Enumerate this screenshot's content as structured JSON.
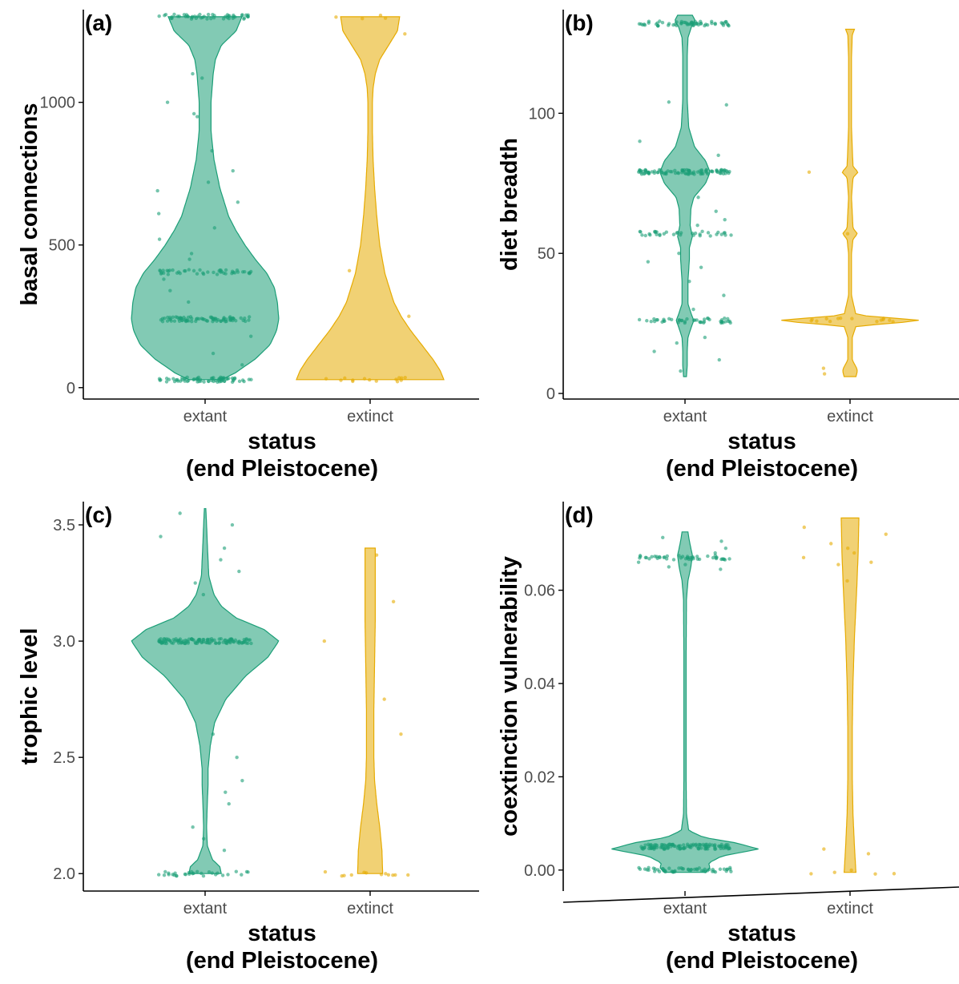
{
  "colors": {
    "extant": "#1b9e77",
    "extinct": "#e6ab02",
    "axis": "#000000",
    "tick_text": "#4d4d4d"
  },
  "chart_data": [
    {
      "type": "violin",
      "panel_label": "(a)",
      "ylabel": "basal connections",
      "xlabel_line1": "status",
      "xlabel_line2": "(end Pleistocene)",
      "categories": [
        "extant",
        "extinct"
      ],
      "ylim": [
        -40,
        1325
      ],
      "yticks": [
        0,
        500,
        1000
      ],
      "ytick_labels": [
        "0",
        "500",
        "1000"
      ],
      "grid": false,
      "series": [
        {
          "name": "extant",
          "ymin": 28,
          "ymax": 1300,
          "density": [
            [
              28,
              0.22
            ],
            [
              50,
              0.4
            ],
            [
              100,
              0.68
            ],
            [
              150,
              0.88
            ],
            [
              200,
              0.97
            ],
            [
              240,
              1.0
            ],
            [
              300,
              0.98
            ],
            [
              350,
              0.94
            ],
            [
              400,
              0.84
            ],
            [
              450,
              0.68
            ],
            [
              500,
              0.54
            ],
            [
              550,
              0.42
            ],
            [
              600,
              0.32
            ],
            [
              700,
              0.2
            ],
            [
              800,
              0.12
            ],
            [
              900,
              0.08
            ],
            [
              1000,
              0.08
            ],
            [
              1100,
              0.11
            ],
            [
              1150,
              0.14
            ],
            [
              1200,
              0.22
            ],
            [
              1250,
              0.42
            ],
            [
              1300,
              0.5
            ]
          ],
          "clusters": [
            [
              28,
              70
            ],
            [
              240,
              80
            ],
            [
              405,
              45
            ],
            [
              1300,
              50
            ]
          ],
          "scatter": [
            960,
            1000,
            1100,
            1085,
            830,
            760,
            720,
            690,
            650,
            610,
            560,
            520,
            470,
            450,
            380,
            340,
            300,
            180,
            120,
            80,
            950
          ]
        },
        {
          "name": "extinct",
          "ymin": 28,
          "ymax": 1300,
          "density": [
            [
              28,
              1.0
            ],
            [
              60,
              0.95
            ],
            [
              100,
              0.85
            ],
            [
              150,
              0.7
            ],
            [
              200,
              0.55
            ],
            [
              250,
              0.42
            ],
            [
              300,
              0.32
            ],
            [
              400,
              0.2
            ],
            [
              500,
              0.13
            ],
            [
              600,
              0.09
            ],
            [
              700,
              0.06
            ],
            [
              800,
              0.04
            ],
            [
              900,
              0.03
            ],
            [
              1000,
              0.03
            ],
            [
              1050,
              0.04
            ],
            [
              1100,
              0.07
            ],
            [
              1150,
              0.13
            ],
            [
              1200,
              0.25
            ],
            [
              1250,
              0.37
            ],
            [
              1300,
              0.4
            ]
          ],
          "clusters": [
            [
              28,
              14
            ],
            [
              1300,
              4
            ]
          ],
          "scatter": [
            1240,
            410,
            250
          ]
        }
      ]
    },
    {
      "type": "violin",
      "panel_label": "(b)",
      "ylabel": "diet breadth",
      "xlabel_line1": "status",
      "xlabel_line2": "(end Pleistocene)",
      "categories": [
        "extant",
        "extinct"
      ],
      "ylim": [
        -2,
        137
      ],
      "yticks": [
        0,
        50,
        100
      ],
      "ytick_labels": [
        "0",
        "50",
        "100"
      ],
      "grid": false,
      "series": [
        {
          "name": "extant",
          "ymin": 6,
          "ymax": 135,
          "density": [
            [
              6,
              0.02
            ],
            [
              10,
              0.03
            ],
            [
              15,
              0.03
            ],
            [
              20,
              0.04
            ],
            [
              24,
              0.09
            ],
            [
              26,
              0.12
            ],
            [
              28,
              0.09
            ],
            [
              32,
              0.04
            ],
            [
              40,
              0.04
            ],
            [
              48,
              0.06
            ],
            [
              52,
              0.06
            ],
            [
              56,
              0.1
            ],
            [
              60,
              0.07
            ],
            [
              66,
              0.08
            ],
            [
              70,
              0.12
            ],
            [
              75,
              0.28
            ],
            [
              79,
              0.34
            ],
            [
              83,
              0.28
            ],
            [
              88,
              0.13
            ],
            [
              95,
              0.05
            ],
            [
              105,
              0.03
            ],
            [
              120,
              0.03
            ],
            [
              127,
              0.04
            ],
            [
              131,
              0.09
            ],
            [
              133,
              0.14
            ],
            [
              135,
              0.1
            ]
          ],
          "clusters": [
            [
              26,
              45
            ],
            [
              79,
              95
            ],
            [
              57,
              35
            ],
            [
              132,
              60
            ]
          ],
          "scatter": [
            103,
            104,
            90,
            85,
            70,
            65,
            62,
            50,
            47,
            40,
            35,
            30,
            20,
            18,
            15,
            12,
            8,
            60,
            45
          ]
        },
        {
          "name": "extinct",
          "ymin": 6,
          "ymax": 130,
          "density": [
            [
              6,
              0.08
            ],
            [
              8,
              0.1
            ],
            [
              9,
              0.09
            ],
            [
              12,
              0.03
            ],
            [
              20,
              0.03
            ],
            [
              24,
              0.08
            ],
            [
              26,
              1.0
            ],
            [
              28,
              0.08
            ],
            [
              35,
              0.02
            ],
            [
              50,
              0.02
            ],
            [
              55,
              0.04
            ],
            [
              57,
              0.1
            ],
            [
              59,
              0.04
            ],
            [
              70,
              0.02
            ],
            [
              77,
              0.04
            ],
            [
              79,
              0.11
            ],
            [
              81,
              0.04
            ],
            [
              95,
              0.02
            ],
            [
              120,
              0.02
            ],
            [
              128,
              0.03
            ],
            [
              130,
              0.06
            ]
          ],
          "clusters": [
            [
              26,
              14
            ]
          ],
          "scatter": [
            79,
            57,
            9,
            7
          ]
        }
      ]
    },
    {
      "type": "violin",
      "panel_label": "(c)",
      "ylabel": "trophic level",
      "xlabel_line1": "status",
      "xlabel_line2": "(end Pleistocene)",
      "categories": [
        "extant",
        "extinct"
      ],
      "ylim": [
        1.925,
        3.6
      ],
      "yticks": [
        2.0,
        2.5,
        3.0,
        3.5
      ],
      "ytick_labels": [
        "2.0",
        "2.5",
        "3.0",
        "3.5"
      ],
      "grid": false,
      "series": [
        {
          "name": "extant",
          "ymin": 2.0,
          "ymax": 3.57,
          "density": [
            [
              2.0,
              0.22
            ],
            [
              2.03,
              0.2
            ],
            [
              2.06,
              0.1
            ],
            [
              2.12,
              0.03
            ],
            [
              2.2,
              0.02
            ],
            [
              2.3,
              0.03
            ],
            [
              2.38,
              0.04
            ],
            [
              2.45,
              0.04
            ],
            [
              2.55,
              0.07
            ],
            [
              2.65,
              0.13
            ],
            [
              2.75,
              0.28
            ],
            [
              2.85,
              0.55
            ],
            [
              2.93,
              0.85
            ],
            [
              3.0,
              1.0
            ],
            [
              3.05,
              0.8
            ],
            [
              3.1,
              0.42
            ],
            [
              3.15,
              0.22
            ],
            [
              3.2,
              0.12
            ],
            [
              3.28,
              0.05
            ],
            [
              3.35,
              0.04
            ],
            [
              3.42,
              0.03
            ],
            [
              3.5,
              0.02
            ],
            [
              3.57,
              0.01
            ]
          ],
          "clusters": [
            [
              3.0,
              120
            ],
            [
              2.0,
              30
            ]
          ],
          "scatter": [
            3.55,
            3.5,
            3.45,
            3.4,
            3.35,
            3.3,
            3.25,
            3.2,
            2.6,
            2.5,
            2.4,
            2.35,
            2.3,
            2.2,
            2.15,
            2.1
          ]
        },
        {
          "name": "extinct",
          "ymin": 2.0,
          "ymax": 3.4,
          "density": [
            [
              2.0,
              0.17
            ],
            [
              2.1,
              0.16
            ],
            [
              2.2,
              0.13
            ],
            [
              2.3,
              0.09
            ],
            [
              2.4,
              0.06
            ],
            [
              2.5,
              0.05
            ],
            [
              2.7,
              0.05
            ],
            [
              2.9,
              0.06
            ],
            [
              3.1,
              0.07
            ],
            [
              3.3,
              0.07
            ],
            [
              3.4,
              0.07
            ]
          ],
          "clusters": [
            [
              2.0,
              12
            ]
          ],
          "scatter": [
            3.37,
            3.17,
            3.0,
            2.75,
            2.6
          ]
        }
      ]
    },
    {
      "type": "violin",
      "panel_label": "(d)",
      "ylabel": "coextinction vulnerability",
      "xlabel_line1": "status",
      "xlabel_line2": "(end Pleistocene)",
      "categories": [
        "extant",
        "extinct"
      ],
      "ylim": [
        -0.0045,
        0.079
      ],
      "yticks": [
        0.0,
        0.02,
        0.04,
        0.06
      ],
      "ytick_labels": [
        "0.00",
        "0.02",
        "0.04",
        "0.06"
      ],
      "grid": false,
      "series": [
        {
          "name": "extant",
          "ymin": -0.0005,
          "ymax": 0.0725,
          "density": [
            [
              -0.0005,
              0.28
            ],
            [
              0.0005,
              0.34
            ],
            [
              0.0015,
              0.32
            ],
            [
              0.003,
              0.5
            ],
            [
              0.0045,
              1.0
            ],
            [
              0.0058,
              0.7
            ],
            [
              0.007,
              0.25
            ],
            [
              0.0085,
              0.05
            ],
            [
              0.012,
              0.02
            ],
            [
              0.02,
              0.015
            ],
            [
              0.03,
              0.015
            ],
            [
              0.045,
              0.015
            ],
            [
              0.058,
              0.02
            ],
            [
              0.062,
              0.04
            ],
            [
              0.065,
              0.08
            ],
            [
              0.0675,
              0.1
            ],
            [
              0.0705,
              0.06
            ],
            [
              0.0725,
              0.04
            ]
          ],
          "clusters": [
            [
              0.0,
              55
            ],
            [
              0.005,
              120
            ],
            [
              0.067,
              45
            ]
          ],
          "scatter": [
            0.0713,
            0.0705,
            0.069,
            0.068,
            0.066,
            0.0655,
            0.065,
            0.0645
          ]
        },
        {
          "name": "extinct",
          "ymin": -0.0005,
          "ymax": 0.0755,
          "density": [
            [
              -0.0005,
              0.08
            ],
            [
              0.005,
              0.06
            ],
            [
              0.012,
              0.04
            ],
            [
              0.02,
              0.03
            ],
            [
              0.03,
              0.03
            ],
            [
              0.04,
              0.04
            ],
            [
              0.05,
              0.06
            ],
            [
              0.06,
              0.09
            ],
            [
              0.068,
              0.11
            ],
            [
              0.0755,
              0.12
            ]
          ],
          "clusters": [
            [
              -0.0005,
              5
            ]
          ],
          "scatter": [
            0.0735,
            0.072,
            0.07,
            0.069,
            0.068,
            0.067,
            0.066,
            0.0655,
            0.062,
            0.0045,
            0.0035
          ]
        }
      ]
    }
  ]
}
